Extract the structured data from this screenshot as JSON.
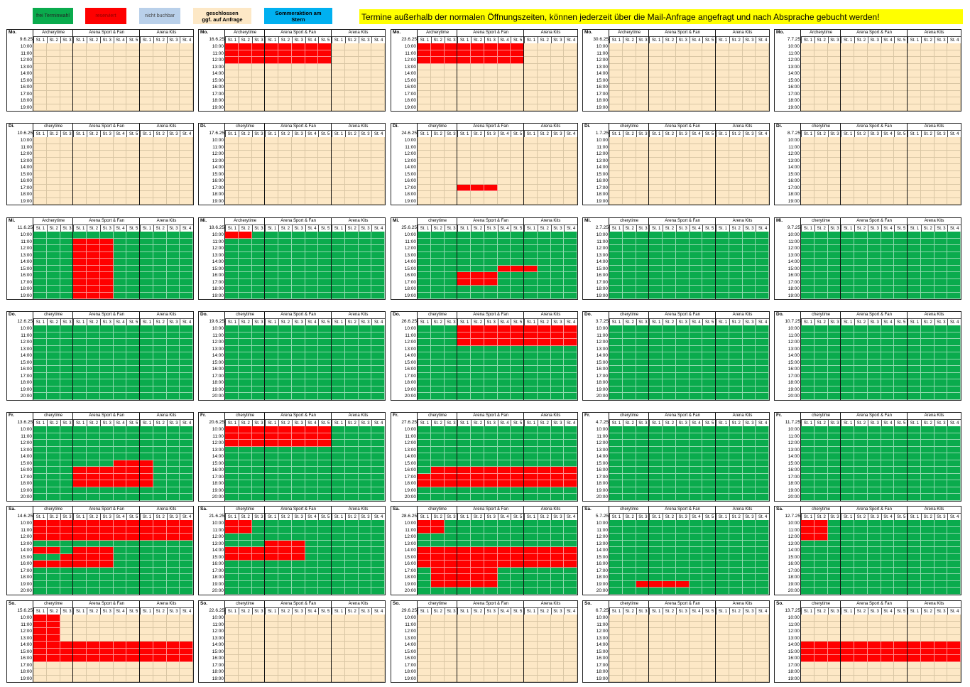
{
  "legend": {
    "free": "frei Terminwahl",
    "reserved": "reserviert",
    "not_bookable": "nicht buchbar",
    "closed": "geschlossen\nggf. auf Anfrage",
    "summer": "Sommeraktion  am\nStern"
  },
  "notice": "Termine außerhalb der normalen Öffnungszeiten, können jederzeit über die Mail-Anfrage angefragt und nach Absprache gebucht werden!",
  "groups": [
    "Archerytime",
    "Arena Sport & Fan",
    "Arena Kits"
  ],
  "group_short": [
    "cherytime",
    "Arena Sport & Fan",
    "Arena Kits"
  ],
  "stations": [
    "St. 1",
    "St. 2",
    "St. 3",
    "St. 1",
    "St. 2",
    "St. 3",
    "St. 4",
    "St. 5",
    "St. 1",
    "St. 2",
    "St. 3",
    "St. 4"
  ],
  "times_10": [
    "10:00",
    "11:00",
    "12:00",
    "13:00",
    "14:00",
    "15:00",
    "16:00",
    "17:00",
    "18:00",
    "19:00"
  ],
  "times_11": [
    "10:00",
    "11:00",
    "12:00",
    "13:00",
    "14:00",
    "15:00",
    "16:00",
    "17:00",
    "18:00",
    "19:00",
    "20:00"
  ],
  "rows": [
    {
      "day": "Mo.",
      "status": "closed",
      "slots": 10,
      "dates": [
        "9.6.25",
        "16.6.25",
        "23.6.25",
        "30.6.25",
        "7.7.25"
      ]
    },
    {
      "day": "Di.",
      "status": "closed",
      "slots": 10,
      "dates": [
        "10.6.25",
        "17.6.25",
        "24.6.25",
        "1.7.25",
        "8.7.25"
      ]
    },
    {
      "day": "Mi.",
      "status": "free",
      "slots": 10,
      "dates": [
        "11.6.25",
        "18.6.25",
        "25.6.25",
        "2.7.25",
        "9.7.25"
      ]
    },
    {
      "day": "Do.",
      "status": "free",
      "slots": 11,
      "dates": [
        "12.6.25",
        "19.6.25",
        "26.6.25",
        "3.7.25",
        "10.7.25"
      ]
    },
    {
      "day": "Fr.",
      "status": "free",
      "slots": 11,
      "dates": [
        "13.6.25",
        "20.6.25",
        "27.6.25",
        "4.7.25",
        "11.7.25"
      ]
    },
    {
      "day": "Sa.",
      "status": "free",
      "slots": 11,
      "dates": [
        "14.6.25",
        "21.6.25",
        "28.6.25",
        "5.7.25",
        "12.7.25"
      ]
    },
    {
      "day": "So.",
      "status": "closed",
      "slots": 10,
      "dates": [
        "15.6.25",
        "22.6.25",
        "29.6.25",
        "6.7.25",
        "13.7.25"
      ]
    }
  ],
  "reservations": [
    [
      [],
      [
        [
          0,
          3,
          0,
          7
        ]
      ],
      [
        [
          0,
          3,
          0,
          7
        ]
      ],
      [],
      []
    ],
    [
      [],
      [],
      [
        [
          7,
          8,
          3,
          5
        ]
      ],
      [],
      []
    ],
    [
      [
        [
          1,
          10,
          3,
          5
        ]
      ],
      [
        [
          0,
          1,
          0,
          1
        ]
      ],
      [
        [
          6,
          8,
          3,
          5
        ],
        [
          5,
          6,
          6,
          8
        ]
      ],
      [],
      []
    ],
    [
      [],
      [],
      [
        [
          0,
          3,
          3,
          11
        ]
      ],
      [],
      []
    ],
    [
      [
        [
          6,
          9,
          3,
          5
        ],
        [
          5,
          9,
          6,
          8
        ]
      ],
      [
        [
          0,
          3,
          0,
          7
        ]
      ],
      [
        [
          7,
          9,
          0,
          0
        ],
        [
          6,
          9,
          1,
          11
        ]
      ],
      [],
      []
    ],
    [
      [
        [
          0,
          3,
          0,
          11
        ],
        [
          4,
          5,
          0,
          1
        ],
        [
          5,
          6,
          2,
          5
        ],
        [
          6,
          7,
          0,
          1
        ],
        [
          5,
          7,
          2,
          5
        ],
        [
          4,
          5,
          3,
          5
        ]
      ],
      [
        [
          0,
          2,
          0,
          1
        ],
        [
          4,
          6,
          0,
          1
        ],
        [
          4,
          6,
          2,
          5
        ],
        [
          3,
          4,
          3,
          5
        ]
      ],
      [
        [
          0,
          2,
          0,
          1
        ],
        [
          4,
          7,
          0,
          11
        ],
        [
          7,
          10,
          1,
          5
        ]
      ],
      [
        [
          9,
          10,
          2,
          5
        ]
      ],
      [
        [
          0,
          3,
          0,
          1
        ]
      ]
    ],
    [
      [
        [
          0,
          4,
          0,
          1
        ],
        [
          4,
          7,
          0,
          11
        ]
      ],
      [],
      [],
      [],
      [
        [
          4,
          7,
          0,
          11
        ]
      ]
    ]
  ]
}
